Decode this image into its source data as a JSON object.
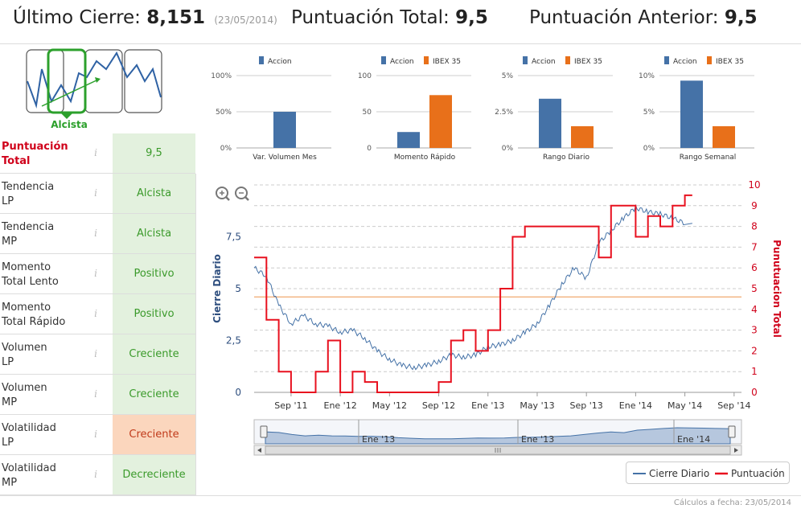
{
  "header": {
    "last_close_label": "Último Cierre:",
    "last_close_value": "8,151",
    "last_close_date": "(23/05/2014)",
    "total_score_label": "Puntuación Total:",
    "total_score_value": "9,5",
    "prev_score_label": "Puntuación Anterior:",
    "prev_score_value": "9,5"
  },
  "trend": {
    "label": "Alcista",
    "color": "#2ca02c"
  },
  "rows": [
    {
      "label_line1": "Puntuación",
      "label_line2": "Total",
      "value": "9,5",
      "status": "good"
    },
    {
      "label_line1": "Tendencia",
      "label_line2": "LP",
      "value": "Alcista",
      "status": "good"
    },
    {
      "label_line1": "Tendencia",
      "label_line2": "MP",
      "value": "Alcista",
      "status": "good"
    },
    {
      "label_line1": "Momento",
      "label_line2": "Total Lento",
      "value": "Positivo",
      "status": "good"
    },
    {
      "label_line1": "Momento",
      "label_line2": "Total Rápido",
      "value": "Positivo",
      "status": "good"
    },
    {
      "label_line1": "Volumen",
      "label_line2": "LP",
      "value": "Creciente",
      "status": "good"
    },
    {
      "label_line1": "Volumen",
      "label_line2": "MP",
      "value": "Creciente",
      "status": "good"
    },
    {
      "label_line1": "Volatilidad",
      "label_line2": "LP",
      "value": "Creciente",
      "status": "bad"
    },
    {
      "label_line1": "Volatilidad",
      "label_line2": "MP",
      "value": "Decreciente",
      "status": "good"
    }
  ],
  "info_glyph": "i",
  "colors": {
    "accion": "#4572a7",
    "ibex": "#e8701a",
    "cierre": "#4572a7",
    "puntuacion": "#e8111f",
    "good_bg": "#e3f1de",
    "bad_bg": "#fbd6bd"
  },
  "chart_data": [
    {
      "type": "bar",
      "title": "Var. Volumen Mes",
      "legend": [
        "Accion"
      ],
      "yticks": [
        "100%",
        "50%",
        "0%"
      ],
      "ylim": [
        0,
        100
      ],
      "series": [
        {
          "name": "Accion",
          "values": [
            50
          ]
        }
      ]
    },
    {
      "type": "bar",
      "title": "Momento Rápido",
      "legend": [
        "Accion",
        "IBEX 35"
      ],
      "yticks": [
        "100",
        "50",
        "0"
      ],
      "ylim": [
        0,
        100
      ],
      "series": [
        {
          "name": "Accion",
          "values": [
            22
          ]
        },
        {
          "name": "IBEX 35",
          "values": [
            73
          ]
        }
      ]
    },
    {
      "type": "bar",
      "title": "Rango Diario",
      "legend": [
        "Accion",
        "IBEX 35"
      ],
      "yticks": [
        "5%",
        "2.5%",
        "0%"
      ],
      "ylim": [
        0,
        5
      ],
      "series": [
        {
          "name": "Accion",
          "values": [
            3.4
          ]
        },
        {
          "name": "IBEX 35",
          "values": [
            1.5
          ]
        }
      ]
    },
    {
      "type": "bar",
      "title": "Rango Semanal",
      "legend": [
        "Accion",
        "IBEX 35"
      ],
      "yticks": [
        "10%",
        "5%",
        "0%"
      ],
      "ylim": [
        0,
        10
      ],
      "series": [
        {
          "name": "Accion",
          "values": [
            9.3
          ]
        },
        {
          "name": "IBEX 35",
          "values": [
            3.0
          ]
        }
      ]
    },
    {
      "type": "line",
      "ylabel_left": "Cierre Diario",
      "ylabel_right": "Punutuacion Total",
      "left_ticks": [
        "7,5",
        "5",
        "2,5",
        "0"
      ],
      "right_ticks": [
        "10",
        "9",
        "8",
        "7",
        "6",
        "5",
        "4",
        "3",
        "2",
        "1",
        "0"
      ],
      "x_ticks": [
        "Sep '11",
        "Ene '12",
        "May '12",
        "Sep '12",
        "Ene '13",
        "May '13",
        "Sep '13",
        "Ene '14",
        "May '14",
        "Sep '14"
      ],
      "navigator_ticks": [
        "Ene '13",
        "Ene '13",
        "Ene '14"
      ],
      "ylim_left": [
        0,
        10
      ],
      "ylim_right": [
        0,
        10
      ],
      "x_range": [
        "2011-06",
        "2014-09"
      ],
      "reference_line_left": 4.6,
      "series": [
        {
          "name": "Cierre Diario",
          "months": [
            "2011-06",
            "2011-07",
            "2011-08",
            "2011-09",
            "2011-10",
            "2011-11",
            "2011-12",
            "2012-01",
            "2012-02",
            "2012-03",
            "2012-04",
            "2012-05",
            "2012-06",
            "2012-07",
            "2012-08",
            "2012-09",
            "2012-10",
            "2012-11",
            "2012-12",
            "2013-01",
            "2013-02",
            "2013-03",
            "2013-04",
            "2013-05",
            "2013-06",
            "2013-07",
            "2013-08",
            "2013-09",
            "2013-10",
            "2013-11",
            "2013-12",
            "2014-01",
            "2014-02",
            "2014-03",
            "2014-04",
            "2014-05"
          ],
          "values": [
            6.0,
            5.6,
            4.2,
            3.3,
            3.7,
            3.3,
            3.2,
            2.9,
            3.0,
            2.6,
            2.0,
            1.6,
            1.3,
            1.2,
            1.3,
            1.5,
            1.8,
            1.7,
            1.8,
            2.2,
            2.3,
            2.5,
            2.9,
            3.3,
            4.2,
            5.2,
            6.0,
            5.5,
            7.2,
            7.8,
            8.4,
            8.9,
            8.7,
            8.6,
            8.4,
            8.15
          ]
        },
        {
          "name": "Puntuación",
          "months": [
            "2011-06",
            "2011-07",
            "2011-08",
            "2011-09",
            "2011-10",
            "2011-11",
            "2011-12",
            "2012-01",
            "2012-02",
            "2012-03",
            "2012-04",
            "2012-05",
            "2012-06",
            "2012-07",
            "2012-08",
            "2012-09",
            "2012-10",
            "2012-11",
            "2012-12",
            "2013-01",
            "2013-02",
            "2013-03",
            "2013-04",
            "2013-05",
            "2013-06",
            "2013-07",
            "2013-08",
            "2013-09",
            "2013-10",
            "2013-11",
            "2013-12",
            "2014-01",
            "2014-02",
            "2014-03",
            "2014-04",
            "2014-05"
          ],
          "values": [
            6.5,
            3.5,
            1.0,
            0.0,
            0.0,
            1.0,
            2.5,
            0.0,
            1.0,
            0.5,
            0.0,
            0.0,
            0.0,
            0.0,
            0.0,
            0.5,
            2.5,
            3.0,
            2.0,
            3.0,
            5.0,
            7.5,
            8.0,
            8.0,
            8.0,
            8.0,
            8.0,
            8.0,
            6.5,
            9.0,
            9.0,
            7.5,
            8.5,
            8.0,
            9.0,
            9.5
          ]
        }
      ],
      "legend": [
        "Cierre Diario",
        "Puntuación"
      ]
    }
  ],
  "footer_text": "Cálculos a fecha: 23/05/2014"
}
